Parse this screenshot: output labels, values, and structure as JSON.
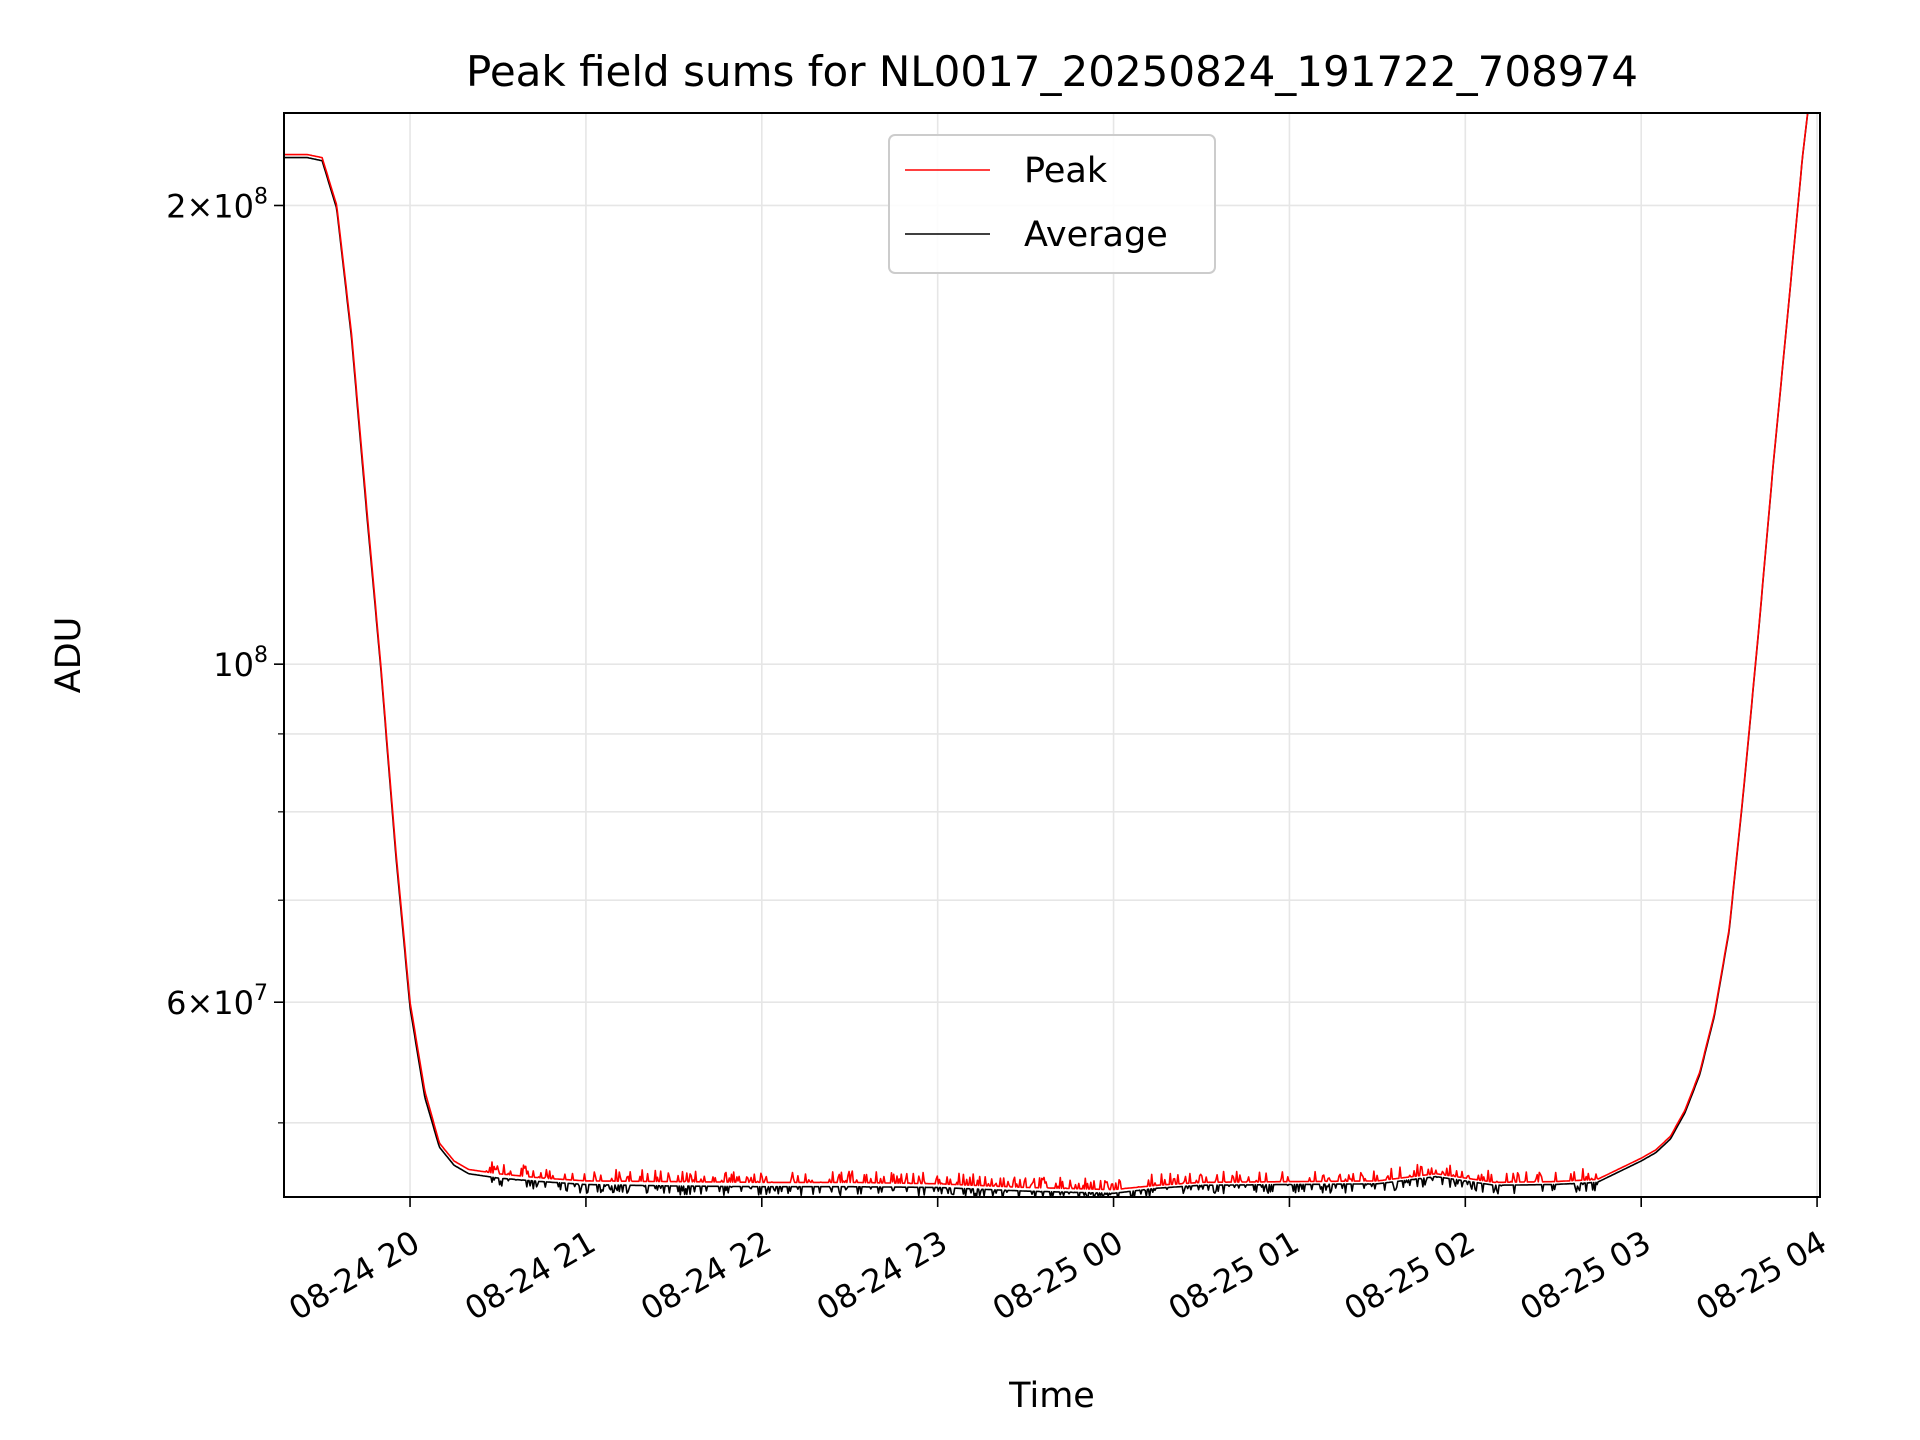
{
  "chart_data": {
    "type": "line",
    "title": "Peak field sums for NL0017_20250824_191722_708974",
    "xlabel": "Time",
    "ylabel": "ADU",
    "x_scale": "time",
    "y_scale": "log",
    "xlim": [
      "2025-08-24 19:17",
      "2025-08-25 04:01"
    ],
    "ylim": [
      44700000,
      230000000
    ],
    "grid": true,
    "legend_position": "top-center",
    "x_ticks": [
      "08-24 20",
      "08-24 21",
      "08-24 22",
      "08-24 23",
      "08-25 00",
      "08-25 01",
      "08-25 02",
      "08-25 03",
      "08-25 04"
    ],
    "x_tick_times": [
      "2025-08-24 20:00",
      "2025-08-24 21:00",
      "2025-08-24 22:00",
      "2025-08-24 23:00",
      "2025-08-25 00:00",
      "2025-08-25 01:00",
      "2025-08-25 02:00",
      "2025-08-25 03:00",
      "2025-08-25 04:00"
    ],
    "y_ticks": [
      {
        "value": 200000000,
        "mantissa": "2",
        "exponent": "8"
      },
      {
        "value": 100000000,
        "mantissa": "",
        "exponent": "8"
      },
      {
        "value": 60000000,
        "mantissa": "6",
        "exponent": "7"
      }
    ],
    "y_minor_ticks": [
      50000000,
      70000000,
      80000000,
      90000000
    ],
    "x": [
      "2025-08-24 19:17",
      "2025-08-24 19:25",
      "2025-08-24 19:30",
      "2025-08-24 19:35",
      "2025-08-24 19:40",
      "2025-08-24 19:45",
      "2025-08-24 19:50",
      "2025-08-24 19:55",
      "2025-08-24 20:00",
      "2025-08-24 20:05",
      "2025-08-24 20:10",
      "2025-08-24 20:15",
      "2025-08-24 20:20",
      "2025-08-24 20:30",
      "2025-08-24 20:45",
      "2025-08-24 21:00",
      "2025-08-24 21:30",
      "2025-08-24 22:00",
      "2025-08-24 22:30",
      "2025-08-24 23:00",
      "2025-08-24 23:30",
      "2025-08-25 00:00",
      "2025-08-25 00:15",
      "2025-08-25 00:30",
      "2025-08-25 01:00",
      "2025-08-25 01:30",
      "2025-08-25 01:50",
      "2025-08-25 02:10",
      "2025-08-25 02:30",
      "2025-08-25 02:45",
      "2025-08-25 03:00",
      "2025-08-25 03:05",
      "2025-08-25 03:10",
      "2025-08-25 03:15",
      "2025-08-25 03:20",
      "2025-08-25 03:25",
      "2025-08-25 03:30",
      "2025-08-25 03:35",
      "2025-08-25 03:40",
      "2025-08-25 03:45",
      "2025-08-25 03:50",
      "2025-08-25 03:55",
      "2025-08-25 03:57"
    ],
    "series": [
      {
        "name": "Peak",
        "color": "#ff0000",
        "values": [
          216000000,
          216000000,
          215000000,
          200000000,
          165000000,
          128000000,
          100000000,
          76000000,
          60000000,
          52500000,
          48500000,
          47200000,
          46600000,
          46300000,
          46000000,
          45800000,
          45750000,
          45700000,
          45700000,
          45600000,
          45350000,
          45200000,
          45500000,
          45700000,
          45750000,
          45800000,
          46300000,
          45700000,
          45750000,
          45900000,
          47400000,
          48000000,
          49000000,
          51000000,
          54000000,
          59000000,
          67000000,
          83000000,
          105000000,
          135000000,
          170000000,
          215000000,
          232000000
        ]
      },
      {
        "name": "Average",
        "color": "#000000",
        "values": [
          215000000,
          215000000,
          214000000,
          199000000,
          164000000,
          127000000,
          99500000,
          75500000,
          59500000,
          52000000,
          48200000,
          46900000,
          46300000,
          46000000,
          45750000,
          45550000,
          45450000,
          45400000,
          45400000,
          45350000,
          45100000,
          44950000,
          45300000,
          45500000,
          45550000,
          45600000,
          46100000,
          45500000,
          45550000,
          45700000,
          47200000,
          47800000,
          48800000,
          50800000,
          53800000,
          58800000,
          66800000,
          82800000,
          104800000,
          134800000,
          169800000,
          214800000,
          231800000
        ]
      }
    ],
    "noise_spikes": {
      "note_window_start": "2025-08-24 20:25",
      "note_window_end": "2025-08-25 02:45",
      "peak_max_excess": 800000,
      "average_max_dip": 600000
    }
  }
}
